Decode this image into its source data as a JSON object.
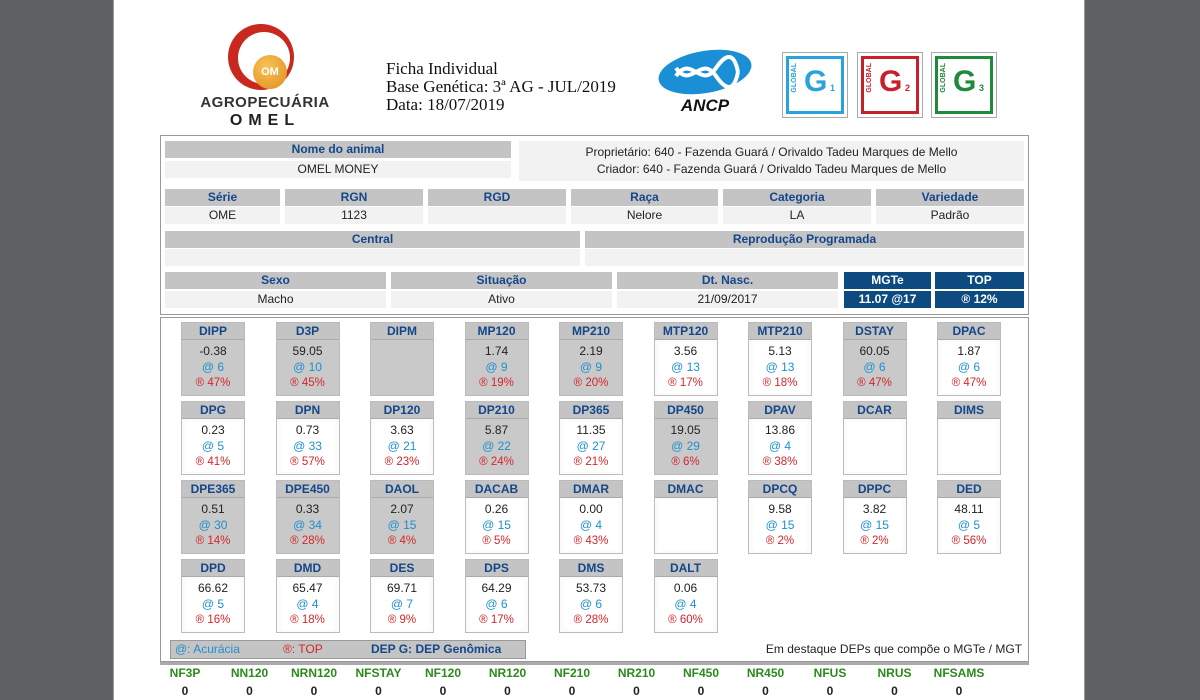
{
  "header": {
    "logo_name": "AGROPECUÁRIA",
    "logo_name2": "OMEL",
    "logo_badge": "OM",
    "title": "Ficha Individual",
    "base": "Base Genética: 3ª AG - JUL/2019",
    "date": "Data: 18/07/2019",
    "ancp": "ANCP",
    "globals": [
      {
        "label": "GLOBAL",
        "letter": "G",
        "num": "1",
        "color": "#29a3dc"
      },
      {
        "label": "GLOBAL",
        "letter": "G",
        "num": "2",
        "color": "#c8202a"
      },
      {
        "label": "GLOBAL",
        "letter": "G",
        "num": "3",
        "color": "#1e8a3a"
      }
    ]
  },
  "animal": {
    "name_label": "Nome do animal",
    "name": "OMEL MONEY",
    "owner": "Proprietário: 640 - Fazenda Guará / Orivaldo Tadeu Marques de Mello",
    "breeder": "Criador: 640 - Fazenda Guará / Orivaldo Tadeu Marques de Mello",
    "serie_label": "Série",
    "serie": "OME",
    "rgn_label": "RGN",
    "rgn": "1123",
    "rgd_label": "RGD",
    "rgd": "",
    "raca_label": "Raça",
    "raca": "Nelore",
    "categoria_label": "Categoria",
    "categoria": "LA",
    "variedade_label": "Variedade",
    "variedade": "Padrão",
    "central_label": "Central",
    "central": "",
    "repro_label": "Reprodução Programada",
    "repro": "",
    "sexo_label": "Sexo",
    "sexo": "Macho",
    "situacao_label": "Situação",
    "situacao": "Ativo",
    "nasc_label": "Dt. Nasc.",
    "nasc": "21/09/2017",
    "mgte_label": "MGTe",
    "mgte": "11.07 @17",
    "top_label": "TOP",
    "top": "® 12%"
  },
  "deps": [
    {
      "n": "DIPP",
      "v": "-0.38",
      "a": "@ 6",
      "t": "® 47%",
      "hl": true
    },
    {
      "n": "D3P",
      "v": "59.05",
      "a": "@ 10",
      "t": "® 45%",
      "hl": true
    },
    {
      "n": "DIPM",
      "v": "",
      "a": "",
      "t": "",
      "hl": true
    },
    {
      "n": "MP120",
      "v": "1.74",
      "a": "@ 9",
      "t": "® 19%",
      "hl": true
    },
    {
      "n": "MP210",
      "v": "2.19",
      "a": "@ 9",
      "t": "® 20%",
      "hl": true
    },
    {
      "n": "MTP120",
      "v": "3.56",
      "a": "@ 13",
      "t": "® 17%",
      "hl": false
    },
    {
      "n": "MTP210",
      "v": "5.13",
      "a": "@ 13",
      "t": "® 18%",
      "hl": false
    },
    {
      "n": "DSTAY",
      "v": "60.05",
      "a": "@ 6",
      "t": "® 47%",
      "hl": true
    },
    {
      "n": "DPAC",
      "v": "1.87",
      "a": "@ 6",
      "t": "® 47%",
      "hl": false
    },
    {
      "n": "DPG",
      "v": "0.23",
      "a": "@ 5",
      "t": "® 41%",
      "hl": false
    },
    {
      "n": "DPN",
      "v": "0.73",
      "a": "@ 33",
      "t": "® 57%",
      "hl": false
    },
    {
      "n": "DP120",
      "v": "3.63",
      "a": "@ 21",
      "t": "® 23%",
      "hl": false
    },
    {
      "n": "DP210",
      "v": "5.87",
      "a": "@ 22",
      "t": "® 24%",
      "hl": true
    },
    {
      "n": "DP365",
      "v": "11.35",
      "a": "@ 27",
      "t": "® 21%",
      "hl": false
    },
    {
      "n": "DP450",
      "v": "19.05",
      "a": "@ 29",
      "t": "® 6%",
      "hl": true
    },
    {
      "n": "DPAV",
      "v": "13.86",
      "a": "@ 4",
      "t": "® 38%",
      "hl": false
    },
    {
      "n": "DCAR",
      "v": "",
      "a": "",
      "t": "",
      "hl": false
    },
    {
      "n": "DIMS",
      "v": "",
      "a": "",
      "t": "",
      "hl": false
    },
    {
      "n": "DPE365",
      "v": "0.51",
      "a": "@ 30",
      "t": "® 14%",
      "hl": true
    },
    {
      "n": "DPE450",
      "v": "0.33",
      "a": "@ 34",
      "t": "® 28%",
      "hl": true
    },
    {
      "n": "DAOL",
      "v": "2.07",
      "a": "@ 15",
      "t": "® 4%",
      "hl": true
    },
    {
      "n": "DACAB",
      "v": "0.26",
      "a": "@ 15",
      "t": "® 5%",
      "hl": false
    },
    {
      "n": "DMAR",
      "v": "0.00",
      "a": "@ 4",
      "t": "® 43%",
      "hl": false
    },
    {
      "n": "DMAC",
      "v": "",
      "a": "",
      "t": "",
      "hl": false
    },
    {
      "n": "DPCQ",
      "v": "9.58",
      "a": "@ 15",
      "t": "® 2%",
      "hl": false
    },
    {
      "n": "DPPC",
      "v": "3.82",
      "a": "@ 15",
      "t": "® 2%",
      "hl": false
    },
    {
      "n": "DED",
      "v": "48.11",
      "a": "@ 5",
      "t": "® 56%",
      "hl": false
    },
    {
      "n": "DPD",
      "v": "66.62",
      "a": "@ 5",
      "t": "® 16%",
      "hl": false
    },
    {
      "n": "DMD",
      "v": "65.47",
      "a": "@ 4",
      "t": "® 18%",
      "hl": false
    },
    {
      "n": "DES",
      "v": "69.71",
      "a": "@ 7",
      "t": "® 9%",
      "hl": false
    },
    {
      "n": "DPS",
      "v": "64.29",
      "a": "@ 6",
      "t": "® 17%",
      "hl": false
    },
    {
      "n": "DMS",
      "v": "53.73",
      "a": "@ 6",
      "t": "® 28%",
      "hl": false
    },
    {
      "n": "DALT",
      "v": "0.06",
      "a": "@ 4",
      "t": "® 60%",
      "hl": false
    }
  ],
  "legend": {
    "acuracia": "@: Acurácia",
    "top": "®: TOP",
    "genomica": "DEP G: DEP Genômica",
    "note": "Em destaque DEPs que compõe o MGTe / MGT"
  },
  "nf": [
    {
      "n": "NF3P",
      "v": "0"
    },
    {
      "n": "NN120",
      "v": "0"
    },
    {
      "n": "NRN120",
      "v": "0"
    },
    {
      "n": "NFSTAY",
      "v": "0"
    },
    {
      "n": "NF120",
      "v": "0"
    },
    {
      "n": "NR120",
      "v": "0"
    },
    {
      "n": "NF210",
      "v": "0"
    },
    {
      "n": "NR210",
      "v": "0"
    },
    {
      "n": "NF450",
      "v": "0"
    },
    {
      "n": "NR450",
      "v": "0"
    },
    {
      "n": "NFUS",
      "v": "0"
    },
    {
      "n": "NRUS",
      "v": "0"
    },
    {
      "n": "NFSAMS",
      "v": "0"
    }
  ]
}
